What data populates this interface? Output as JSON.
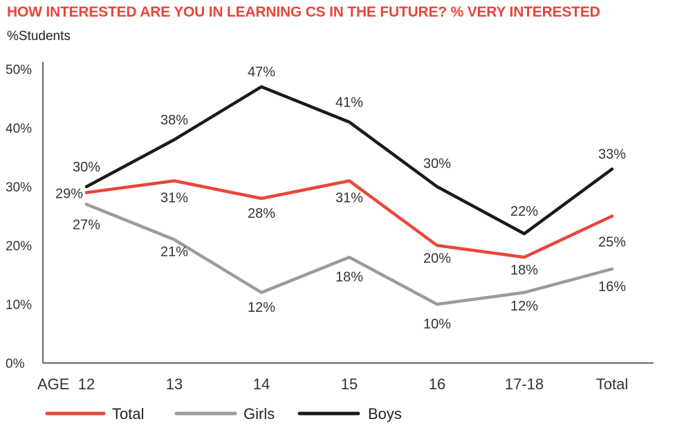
{
  "title": "HOW INTERESTED ARE YOU IN LEARNING CS IN THE FUTURE? % VERY INTERESTED",
  "ylabel": "%Students",
  "x_prefix": "AGE",
  "colors": {
    "Total": "#e8463a",
    "Girls": "#9b9b9b",
    "Boys": "#1a1a1a",
    "axis": "#333333"
  },
  "chart_data": {
    "type": "line",
    "title": "HOW INTERESTED ARE YOU IN LEARNING CS IN THE FUTURE? % VERY INTERESTED",
    "xlabel": "AGE",
    "ylabel": "%Students",
    "categories": [
      "12",
      "13",
      "14",
      "15",
      "16",
      "17-18",
      "Total"
    ],
    "ylim": [
      0,
      50
    ],
    "yticks": [
      0,
      10,
      20,
      30,
      40,
      50
    ],
    "ytick_labels": [
      "0%",
      "10%",
      "20%",
      "30%",
      "40%",
      "50%"
    ],
    "grid": false,
    "legend": "bottom",
    "series": [
      {
        "name": "Total",
        "values": [
          29,
          31,
          28,
          31,
          20,
          18,
          25
        ],
        "labels": [
          "29%",
          "31%",
          "28%",
          "31%",
          "20%",
          "18%",
          "25%"
        ]
      },
      {
        "name": "Girls",
        "values": [
          27,
          21,
          12,
          18,
          10,
          12,
          16
        ],
        "labels": [
          "27%",
          "21%",
          "12%",
          "18%",
          "10%",
          "12%",
          "16%"
        ]
      },
      {
        "name": "Boys",
        "values": [
          30,
          38,
          47,
          41,
          30,
          22,
          33
        ],
        "labels": [
          "30%",
          "38%",
          "47%",
          "41%",
          "30%",
          "22%",
          "33%"
        ]
      }
    ]
  }
}
